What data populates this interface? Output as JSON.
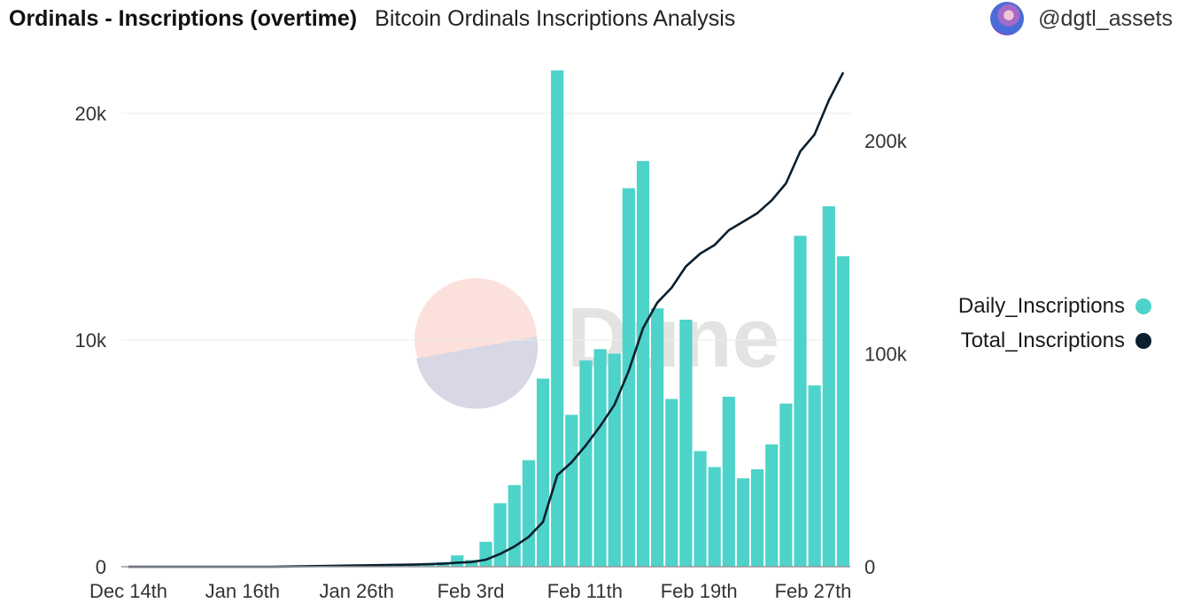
{
  "header": {
    "title": "Ordinals - Inscriptions (overtime)",
    "subtitle": "Bitcoin Ordinals Inscriptions Analysis",
    "author": "@dgtl_assets"
  },
  "watermark": {
    "text": "Dune"
  },
  "colors": {
    "bar": "#4dd3c9",
    "line": "#0b1f2e",
    "grid": "#ececec"
  },
  "chart_data": {
    "type": "bar",
    "title": "Ordinals - Inscriptions (overtime)",
    "x_tick_labels": [
      "Dec 14th",
      "Jan 16th",
      "Jan 26th",
      "Feb 3rd",
      "Feb 11th",
      "Feb 19th",
      "Feb 27th"
    ],
    "left_axis": {
      "ticks": [
        0,
        10000,
        20000
      ],
      "tick_labels": [
        "0",
        "10k",
        "20k"
      ],
      "range": [
        0,
        21800
      ]
    },
    "right_axis": {
      "ticks": [
        0,
        100000,
        200000
      ],
      "tick_labels": [
        "0",
        "100k",
        "200k"
      ],
      "range": [
        0,
        232000
      ]
    },
    "series": [
      {
        "name": "Daily_Inscriptions",
        "type": "bar",
        "axis": "left",
        "values": [
          5,
          5,
          10,
          8,
          5,
          5,
          5,
          5,
          5,
          5,
          5,
          10,
          15,
          20,
          25,
          30,
          30,
          40,
          40,
          50,
          80,
          120,
          200,
          500,
          300,
          1100,
          2800,
          3600,
          4700,
          8300,
          21900,
          6700,
          9100,
          9600,
          9400,
          16700,
          17900,
          11400,
          7400,
          10900,
          5100,
          4400,
          7500,
          3900,
          4300,
          5400,
          7200,
          14600,
          8000,
          15900,
          13700
        ]
      },
      {
        "name": "Total_Inscriptions",
        "type": "line",
        "axis": "right",
        "values": [
          0,
          0,
          0,
          0,
          0,
          0,
          0,
          0,
          0,
          0,
          0,
          100,
          200,
          300,
          400,
          500,
          600,
          700,
          800,
          900,
          1000,
          1200,
          1400,
          1900,
          2200,
          3300,
          6000,
          9500,
          14000,
          21000,
          43000,
          49000,
          57000,
          66000,
          76000,
          92000,
          112000,
          124000,
          131000,
          141000,
          147000,
          151000,
          158000,
          162000,
          166000,
          172000,
          180000,
          195000,
          203000,
          219000,
          232000
        ]
      }
    ],
    "legend": [
      "Daily_Inscriptions",
      "Total_Inscriptions"
    ],
    "legend_position": "right"
  }
}
